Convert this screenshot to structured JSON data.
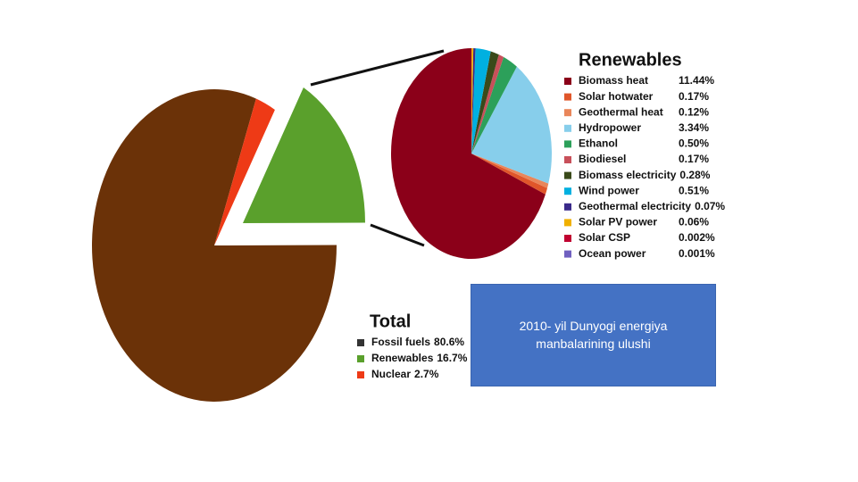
{
  "chart_data": [
    {
      "type": "pie",
      "title": "Total",
      "categories": [
        "Fossil fuels",
        "Renewables",
        "Nuclear"
      ],
      "values": [
        80.6,
        16.7,
        2.7
      ],
      "value_labels": [
        "80.6%",
        "16.7%",
        "2.7%"
      ],
      "colors": [
        "#6b3208",
        "#5aa02c",
        "#ee3a16"
      ],
      "legend_colors": [
        "#333333",
        "#5aa02c",
        "#ee3a16"
      ]
    },
    {
      "type": "pie",
      "title": "Renewables",
      "categories": [
        "Biomass heat",
        "Solar hotwater",
        "Geothermal heat",
        "Hydropower",
        "Ethanol",
        "Biodiesel",
        "Biomass electricity",
        "Wind power",
        "Geothermal electricity",
        "Solar PV power",
        "Solar CSP",
        "Ocean power"
      ],
      "values": [
        11.44,
        0.17,
        0.12,
        3.34,
        0.5,
        0.17,
        0.28,
        0.51,
        0.07,
        0.06,
        0.002,
        0.001
      ],
      "value_labels": [
        "11.44%",
        "0.17%",
        "0.12%",
        "3.34%",
        "0.50%",
        "0.17%",
        "0.28%",
        "0.51%",
        "0.07%",
        "0.06%",
        "0.002%",
        "0.001%"
      ],
      "colors": [
        "#8b0019",
        "#e0562a",
        "#e9865a",
        "#87ceeb",
        "#2ca05a",
        "#c8505a",
        "#3a4a1a",
        "#00b0e0",
        "#3a2a8a",
        "#f0b000",
        "#c00030",
        "#7060c0"
      ]
    }
  ],
  "caption": "2010- yil Dunyogi energiya manbalarining ulushi"
}
